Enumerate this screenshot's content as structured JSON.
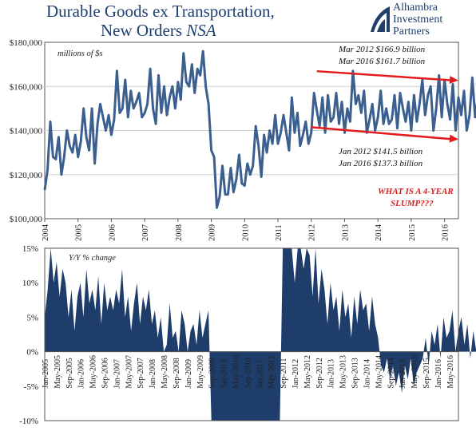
{
  "title_line1": "Durable Goods ex Transportation,",
  "title_line2": "New Orders",
  "title_line2_italic": "NSA",
  "logo": {
    "line1": "Alhambra",
    "line2": "Investment",
    "line3": "Partners"
  },
  "chart_data": [
    {
      "type": "line",
      "ylabel": "millions of $s",
      "ylim": [
        100000,
        180000
      ],
      "y_ticks": [
        "$100,000",
        "$120,000",
        "$140,000",
        "$160,000",
        "$180,000"
      ],
      "x_tick_labels": [
        "2004",
        "2005",
        "2006",
        "2007",
        "2008",
        "2009",
        "2010",
        "2011",
        "2012",
        "2013",
        "2014",
        "2015",
        "2016"
      ],
      "series": [
        {
          "color": "#3b5f8f",
          "start": "2004-01",
          "values": [
            113000,
            122000,
            144000,
            128000,
            127000,
            137000,
            120000,
            128000,
            140000,
            133000,
            130000,
            138000,
            128000,
            135000,
            150000,
            137000,
            131000,
            150000,
            125000,
            143000,
            152000,
            146000,
            140000,
            147000,
            138000,
            145000,
            167000,
            148000,
            150000,
            163000,
            146000,
            158000,
            150000,
            153000,
            157000,
            146000,
            148000,
            152000,
            168000,
            150000,
            143000,
            165000,
            148000,
            160000,
            147000,
            155000,
            160000,
            150000,
            162000,
            154000,
            175000,
            162000,
            160000,
            170000,
            157000,
            168000,
            165000,
            176000,
            160000,
            152000,
            131000,
            128000,
            105000,
            110000,
            124000,
            111000,
            111000,
            123000,
            112000,
            118000,
            129000,
            116000,
            115000,
            125000,
            120000,
            124000,
            142000,
            133000,
            119000,
            138000,
            130000,
            140000,
            134000,
            147000,
            134000,
            139000,
            147000,
            139000,
            131000,
            155000,
            139000,
            148000,
            133000,
            138000,
            144000,
            134000,
            139000,
            157000,
            149000,
            142000,
            155000,
            139000,
            156000,
            144000,
            146000,
            157000,
            143000,
            153000,
            139000,
            150000,
            144000,
            167000,
            152000,
            156000,
            148000,
            158000,
            139000,
            145000,
            152000,
            140000,
            146000,
            158000,
            143000,
            150000,
            143000,
            145000,
            156000,
            141000,
            157000,
            150000,
            144000,
            153000,
            140000,
            156000,
            144000,
            152000,
            163000,
            147000,
            156000,
            160000,
            140000,
            150000,
            165000,
            146000,
            163000,
            152000,
            145000,
            161000,
            140000,
            155000,
            147000,
            158000,
            140000,
            147000,
            164000,
            146000,
            155000,
            158000,
            142000,
            147000,
            161000,
            153000,
            148000,
            139000,
            155000,
            143000,
            137000,
            150000,
            162000,
            149000,
            149000,
            150000
          ]
        }
      ],
      "annotations": {
        "top": [
          "Mar 2012  $166.9 billion",
          "Mar 2016  $161.7 billion"
        ],
        "bottom": [
          "Jan 2012  $141.5 billion",
          "Jan 2016  $137.3 billion"
        ],
        "callout": [
          "WHAT IS A 4-YEAR",
          "SLUMP???"
        ],
        "trend_top": {
          "from": [
            "2012-03",
            166900
          ],
          "to": [
            "2016-06",
            162700
          ]
        },
        "trend_bottom": {
          "from": [
            "2012-01",
            141500
          ],
          "to": [
            "2016-06",
            136000
          ]
        }
      }
    },
    {
      "type": "area",
      "ylabel": "Y/Y % change",
      "ylim": [
        -10,
        15
      ],
      "y_ticks": [
        "-10%",
        "-5%",
        "0%",
        "5%",
        "10%",
        "15%"
      ],
      "x_tick_labels": [
        "Jan-2005",
        "May-2005",
        "Sep-2005",
        "Jan-2006",
        "May-2006",
        "Sep-2006",
        "Jan-2007",
        "May-2007",
        "Sep-2007",
        "Jan-2008",
        "May-2008",
        "Sep-2008",
        "Jan-2009",
        "May-2009",
        "Sep-2009",
        "Jan-2010",
        "May-2010",
        "Sep-2010",
        "Jan-2011",
        "May-2011",
        "Sep-2011",
        "Jan-2012",
        "May-2012",
        "Sep-2012",
        "Jan-2013",
        "May-2013",
        "Sep-2013",
        "Jan-2014",
        "May-2014",
        "Sep-2014",
        "Jan-2015",
        "May-2015",
        "Sep-2015",
        "Jan-2016",
        "May-2016"
      ],
      "series": [
        {
          "color": "#1f3d6b",
          "start": "2005-01",
          "values": [
            5,
            9,
            15,
            10,
            13,
            8,
            12,
            10,
            5,
            9,
            3,
            8,
            10,
            5,
            12,
            7,
            9,
            6,
            11,
            4,
            10,
            6,
            8,
            6,
            9,
            7,
            12,
            5,
            8,
            3,
            7,
            10,
            4,
            8,
            6,
            9,
            4,
            6,
            2,
            5,
            0,
            1,
            7,
            2,
            3,
            0,
            6,
            4,
            0,
            3,
            4,
            1,
            6,
            2,
            4,
            6,
            -10,
            -10,
            -10,
            -10,
            -10,
            -10,
            -10,
            -10,
            -10,
            -10,
            -10,
            -10,
            -10,
            -10,
            -10,
            -10,
            -10,
            -10,
            -10,
            -10,
            -10,
            -10,
            -10,
            -10,
            16,
            16,
            16,
            16,
            10,
            16,
            16,
            12,
            16,
            14,
            8,
            16,
            7,
            12,
            9,
            4,
            10,
            6,
            8,
            3,
            9,
            5,
            7,
            2,
            8,
            4,
            9,
            6,
            7,
            3,
            8,
            4,
            2,
            -2,
            -3,
            -1,
            -4,
            -2,
            -5,
            -3,
            -6,
            -2,
            -4,
            -1,
            -5,
            -3,
            -2,
            -1,
            2,
            -2,
            3,
            1,
            4,
            -1,
            5,
            2,
            3,
            6,
            0,
            3,
            5,
            1,
            4,
            -1,
            3,
            0,
            -2,
            -1,
            -3,
            -1,
            -4,
            -2,
            -5,
            -1,
            -3,
            -2,
            0,
            2,
            -1,
            -3,
            1,
            -2
          ]
        }
      ]
    }
  ]
}
